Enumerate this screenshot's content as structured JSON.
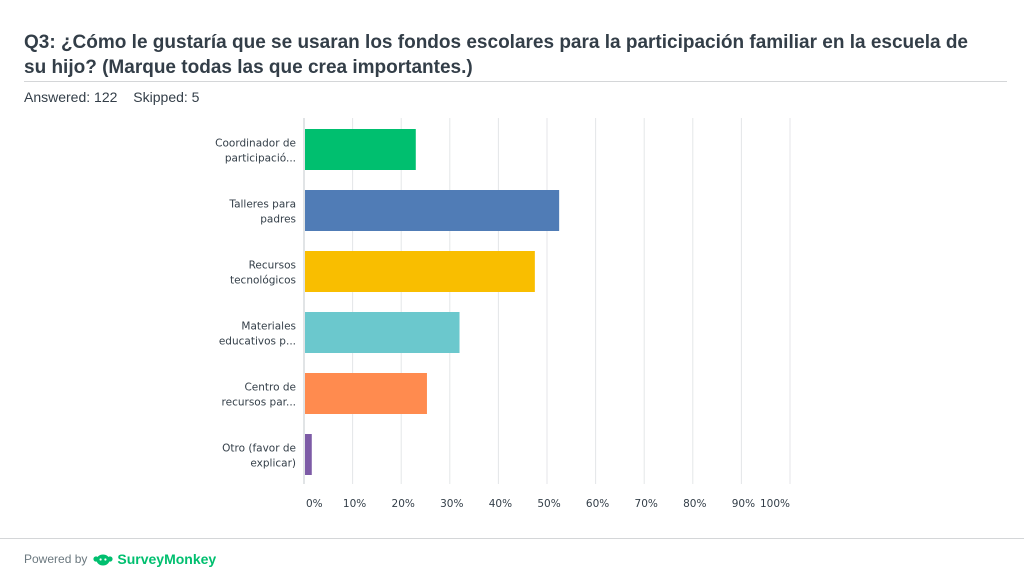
{
  "title": "Q3: ¿Cómo le gustaría que se usaran los fondos escolares para la participación familiar en la escuela de su hijo? (Marque todas las que crea importantes.)",
  "stats": {
    "answered": "Answered: 122",
    "skipped": "Skipped: 5"
  },
  "footer": {
    "powered_by": "Powered by",
    "brand": "SurveyMonkey"
  },
  "icons": {
    "brand_logo": "surveymonkey-logo-icon"
  },
  "chart_data": {
    "type": "bar",
    "orientation": "horizontal",
    "categories": [
      [
        "Coordinador de",
        "participació..."
      ],
      [
        "Talleres para",
        "padres"
      ],
      [
        "Recursos",
        "tecnológicos"
      ],
      [
        "Materiales",
        "educativos p..."
      ],
      [
        "Centro de",
        "recursos par..."
      ],
      [
        "Otro (favor de",
        "explicar)"
      ]
    ],
    "values": [
      23,
      52.5,
      47.5,
      32,
      25.3,
      1.6
    ],
    "colors": [
      "#00bf6f",
      "#507cb6",
      "#f9be00",
      "#6bc8cd",
      "#ff8b4f",
      "#7d5ba6"
    ],
    "xticks": [
      "0%",
      "10%",
      "20%",
      "30%",
      "40%",
      "50%",
      "60%",
      "70%",
      "80%",
      "90%",
      "100%"
    ],
    "xlim": [
      0,
      100
    ],
    "grid": true,
    "legend": "none"
  }
}
